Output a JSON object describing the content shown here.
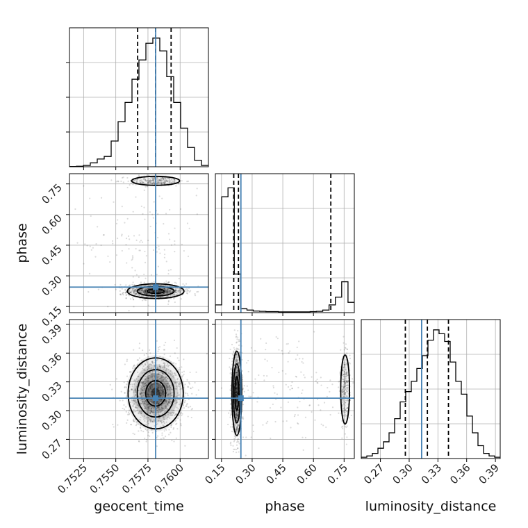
{
  "chart_data": {
    "type": "corner",
    "parameters": [
      "geocent_time",
      "phase",
      "luminosity_distance"
    ],
    "truths": {
      "geocent_time": 0.7581,
      "phase": 0.245,
      "luminosity_distance": 0.313
    },
    "truth_color": "#4682b4",
    "quantiles": {
      "geocent_time": [
        0.7567,
        0.7581,
        0.7593
      ],
      "phase": [
        0.21,
        0.233,
        0.685
      ],
      "luminosity_distance": [
        0.296,
        0.319,
        0.341
      ]
    },
    "ranges": {
      "geocent_time": [
        0.7514,
        0.7622
      ],
      "phase": [
        0.12,
        0.8
      ],
      "luminosity_distance": [
        0.25,
        0.395
      ]
    },
    "ticks": {
      "geocent_time": [
        "0.7525",
        "0.7550",
        "0.7575",
        "0.7600"
      ],
      "phase": [
        "0.15",
        "0.30",
        "0.45",
        "0.60",
        "0.75"
      ],
      "luminosity_distance": [
        "0.27",
        "0.30",
        "0.33",
        "0.36",
        "0.39"
      ]
    },
    "marginals": {
      "geocent_time": [
        0.002,
        0.004,
        0.01,
        0.03,
        0.06,
        0.08,
        0.2,
        0.35,
        0.5,
        0.68,
        0.83,
        0.96,
        1.0,
        0.9,
        0.7,
        0.5,
        0.3,
        0.15,
        0.05,
        0.01
      ],
      "phase": [
        0.06,
        0.9,
        0.97,
        0.3,
        0.03,
        0.02,
        0.012,
        0.01,
        0.008,
        0.008,
        0.006,
        0.006,
        0.006,
        0.006,
        0.006,
        0.008,
        0.01,
        0.02,
        0.06,
        0.12,
        0.24,
        0.08
      ],
      "luminosity_distance": [
        0.01,
        0.02,
        0.04,
        0.08,
        0.13,
        0.2,
        0.31,
        0.44,
        0.52,
        0.6,
        0.7,
        0.8,
        0.92,
        1.0,
        0.97,
        0.91,
        0.75,
        0.6,
        0.5,
        0.33,
        0.2,
        0.1,
        0.04,
        0.02,
        0.01
      ]
    },
    "marginal_ymax": {
      "geocent_time": 1.08,
      "phase": 1.08,
      "luminosity_distance": 1.08
    },
    "grid": true
  }
}
